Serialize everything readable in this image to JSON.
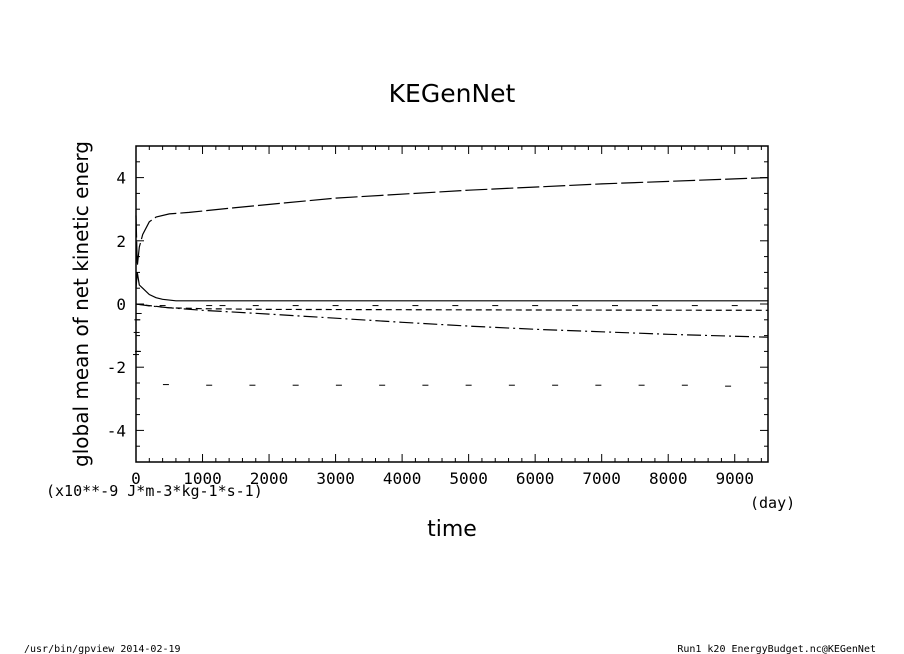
{
  "chart_data": {
    "type": "line",
    "title": "KEGenNet",
    "xlabel": "time",
    "x_unit": "(day)",
    "ylabel": "global mean of net kinetic energ",
    "y_unit": "(x10**-9 J*m-3*kg-1*s-1)",
    "xlim": [
      0,
      9500
    ],
    "ylim": [
      -5,
      5
    ],
    "x_ticks": [
      0,
      1000,
      2000,
      3000,
      4000,
      5000,
      6000,
      7000,
      8000,
      9000
    ],
    "y_ticks": [
      -4,
      -2,
      0,
      2,
      4
    ],
    "grid": false,
    "series": [
      {
        "style": "solid",
        "x": [
          0,
          20,
          50,
          100,
          200,
          300,
          400,
          600,
          1000,
          2000,
          4000,
          9500
        ],
        "y": [
          0.5,
          1.0,
          0.6,
          0.5,
          0.3,
          0.2,
          0.15,
          0.1,
          0.1,
          0.1,
          0.1,
          0.1
        ]
      },
      {
        "style": "long-dash",
        "x": [
          0,
          20,
          50,
          100,
          200,
          300,
          500,
          800,
          1500,
          3000,
          5000,
          7000,
          9500
        ],
        "y": [
          2.8,
          1.2,
          1.8,
          2.2,
          2.6,
          2.75,
          2.85,
          2.9,
          3.05,
          3.35,
          3.6,
          3.8,
          4.0
        ]
      },
      {
        "style": "dash",
        "x": [
          0,
          200,
          500,
          1000,
          2000,
          4000,
          6000,
          9500
        ],
        "y": [
          0.0,
          -0.05,
          -0.12,
          -0.15,
          -0.17,
          -0.18,
          -0.19,
          -0.2
        ]
      },
      {
        "style": "dash-dot",
        "x": [
          0,
          200,
          500,
          1000,
          2000,
          3000,
          4000,
          5000,
          6000,
          7000,
          8000,
          9500
        ],
        "y": [
          0.0,
          -0.06,
          -0.12,
          -0.2,
          -0.32,
          -0.45,
          -0.58,
          -0.7,
          -0.8,
          -0.88,
          -0.96,
          -1.05
        ]
      },
      {
        "style": "sparse-dash",
        "draw": "dashes",
        "x": [
          0,
          10,
          20,
          40,
          400,
          1100,
          1300,
          1800,
          2400,
          3000,
          3600,
          4200,
          4800,
          5400,
          6000,
          6600,
          7200,
          7800,
          8400,
          9000
        ],
        "y": [
          -1.6,
          -0.9,
          -0.5,
          -0.3,
          -0.05,
          -0.05,
          -0.05,
          -0.05,
          -0.05,
          -0.05,
          -0.05,
          -0.05,
          -0.05,
          -0.05,
          -0.05,
          -0.05,
          -0.05,
          -0.05,
          -0.05,
          -0.05
        ]
      },
      {
        "style": "sparse-dash-2",
        "draw": "dashes",
        "x": [
          30,
          450,
          1100,
          1750,
          2400,
          3050,
          3700,
          4350,
          5000,
          5650,
          6300,
          6950,
          7600,
          8250,
          8900
        ],
        "y": [
          -1.5,
          -2.55,
          -2.57,
          -2.57,
          -2.57,
          -2.57,
          -2.57,
          -2.57,
          -2.57,
          -2.57,
          -2.57,
          -2.57,
          -2.57,
          -2.57,
          -2.6
        ]
      }
    ]
  },
  "footer": {
    "left": "/usr/bin/gpview  2014-02-19",
    "right": "Run1_k20_EnergyBudget.nc@KEGenNet"
  }
}
